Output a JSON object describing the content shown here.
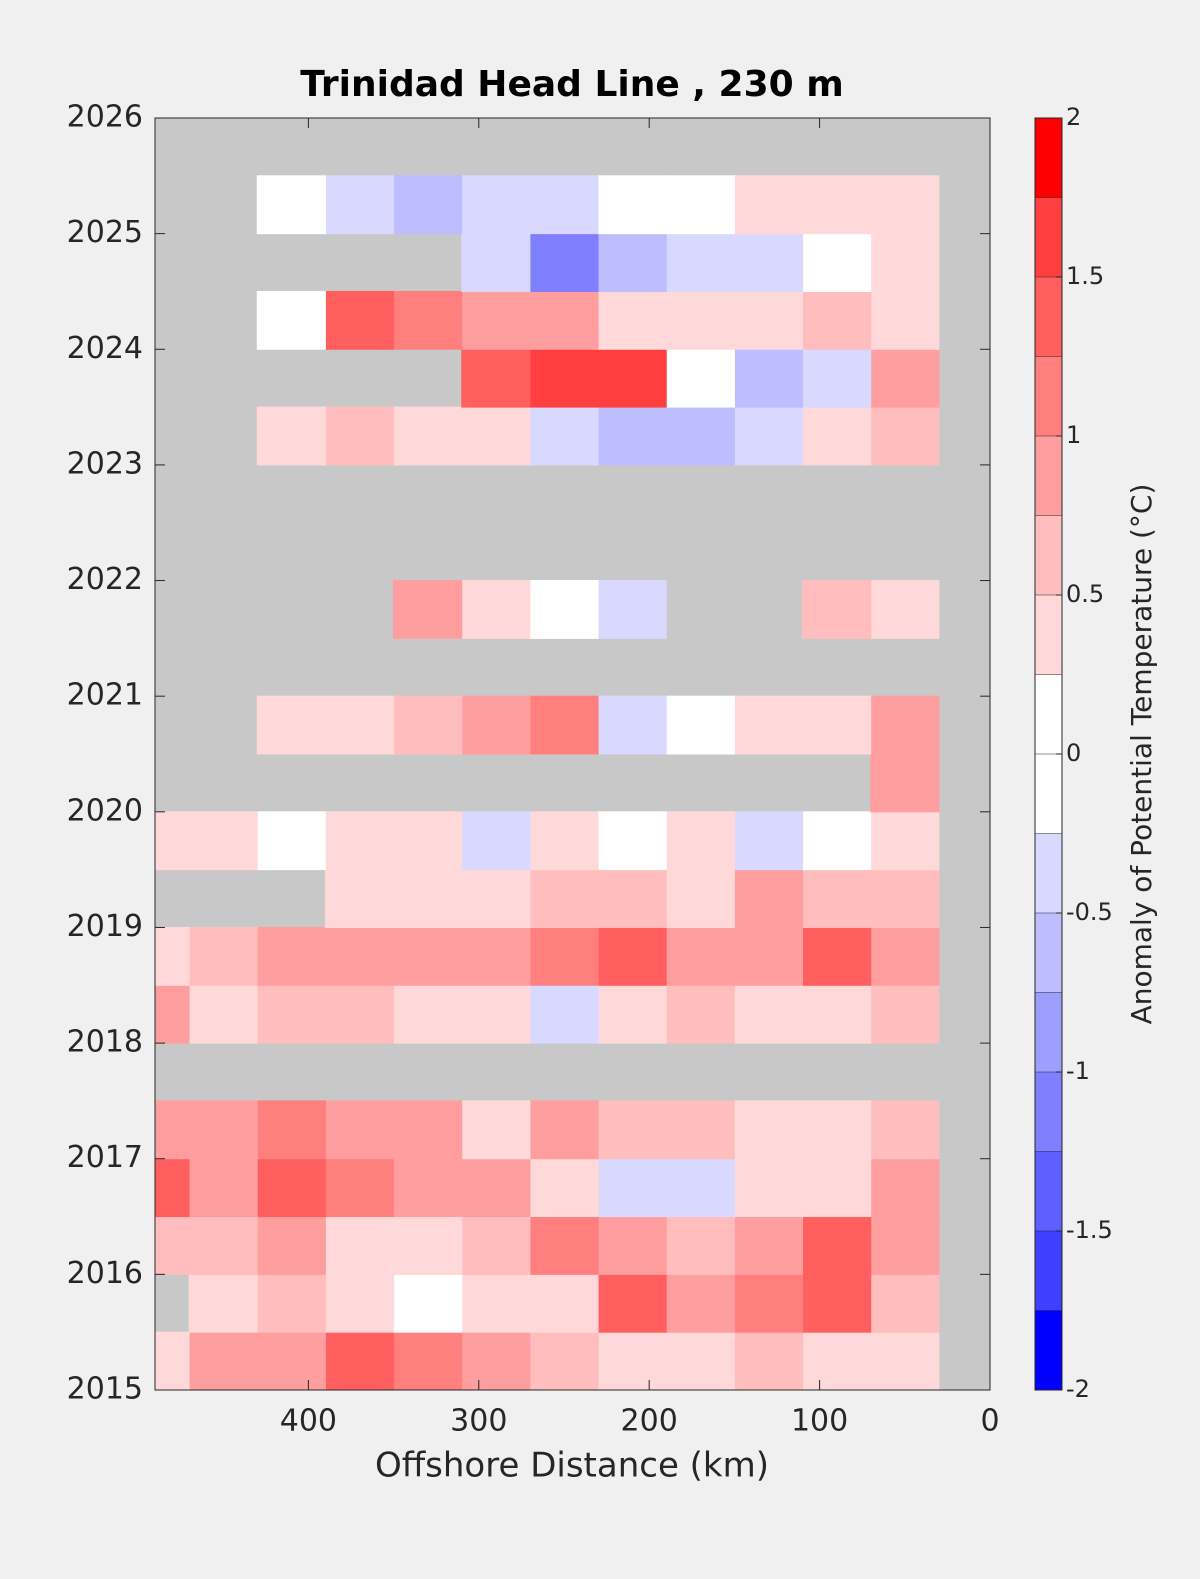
{
  "chart_data": {
    "type": "heatmap",
    "title": "Trinidad Head Line , 230 m",
    "xlabel": "Offshore Distance (km)",
    "colorbar_label": "Anomaly of Potential Temperature (°C)",
    "x": [
      50,
      90,
      130,
      170,
      210,
      250,
      290,
      330,
      370,
      410,
      450,
      490
    ],
    "y": [
      2015.25,
      2015.75,
      2016.25,
      2016.75,
      2017.25,
      2017.75,
      2018.25,
      2018.75,
      2019.25,
      2019.75,
      2020.25,
      2020.75,
      2021.25,
      2021.75,
      2022.25,
      2022.75,
      2023.25,
      2023.75,
      2024.25,
      2024.75,
      2025.25,
      2025.75
    ],
    "z": [
      [
        0.3,
        0.4,
        0.7,
        0.3,
        0.5,
        0.6,
        0.8,
        1.1,
        1.3,
        0.8,
        0.9,
        0.5
      ],
      [
        0.6,
        1.5,
        1.2,
        0.9,
        1.4,
        0.5,
        0.3,
        0.2,
        0.3,
        0.6,
        0.4,
        null
      ],
      [
        1.0,
        1.4,
        1.0,
        0.6,
        0.8,
        1.1,
        0.6,
        0.4,
        0.5,
        0.9,
        0.7,
        0.6
      ],
      [
        0.9,
        0.5,
        0.3,
        -0.4,
        -0.3,
        0.3,
        0.8,
        1.0,
        1.2,
        1.3,
        1.0,
        1.3
      ],
      [
        0.6,
        0.3,
        0.4,
        0.7,
        0.6,
        0.8,
        0.5,
        0.8,
        1.0,
        1.1,
        0.9,
        1.0
      ],
      [
        null,
        null,
        null,
        null,
        null,
        null,
        null,
        null,
        null,
        null,
        null,
        null
      ],
      [
        0.6,
        0.3,
        0.5,
        0.6,
        0.3,
        -0.3,
        0.3,
        0.5,
        0.6,
        0.6,
        0.5,
        0.8
      ],
      [
        0.8,
        1.3,
        0.8,
        0.9,
        1.5,
        1.2,
        0.9,
        0.8,
        1.0,
        0.8,
        0.6,
        0.3
      ],
      [
        0.6,
        0.7,
        0.8,
        0.5,
        0.7,
        0.6,
        0.5,
        0.4,
        0.5,
        null,
        null,
        null
      ],
      [
        0.3,
        0,
        -0.3,
        0.5,
        0.2,
        0.3,
        -0.3,
        0.5,
        0.3,
        0,
        0.4,
        0.5
      ],
      [
        0.8,
        null,
        null,
        null,
        null,
        null,
        null,
        null,
        null,
        null,
        null,
        null
      ],
      [
        0.8,
        0.3,
        0.3,
        0,
        -0.4,
        1.2,
        0.8,
        0.7,
        0.5,
        0.4,
        null,
        null
      ],
      [
        null,
        null,
        null,
        null,
        null,
        null,
        null,
        null,
        null,
        null,
        null,
        null
      ],
      [
        0.5,
        0.7,
        null,
        null,
        -0.3,
        0,
        0.3,
        0.8,
        null,
        null,
        null,
        null
      ],
      [
        null,
        null,
        null,
        null,
        null,
        null,
        null,
        null,
        null,
        null,
        null,
        null
      ],
      [
        null,
        null,
        null,
        null,
        null,
        null,
        null,
        null,
        null,
        null,
        null,
        null
      ],
      [
        0.6,
        0.3,
        -0.4,
        -0.5,
        -0.6,
        -0.3,
        0.3,
        0.5,
        0.6,
        0.5,
        null,
        null
      ],
      [
        1.0,
        -0.3,
        -0.5,
        0.2,
        1.6,
        1.6,
        1.5,
        null,
        null,
        null,
        null,
        null
      ],
      [
        0.5,
        0.6,
        0.3,
        0.4,
        0.5,
        0.8,
        0.9,
        1.2,
        1.5,
        0.2,
        null,
        null
      ],
      [
        0.3,
        0,
        -0.3,
        -0.4,
        -0.5,
        -1.0,
        -0.3,
        null,
        null,
        null,
        null,
        null
      ],
      [
        0.5,
        0.5,
        0.3,
        0.2,
        0,
        -0.3,
        -0.4,
        -0.5,
        -0.3,
        0.1,
        null,
        null
      ],
      [
        null,
        null,
        null,
        null,
        null,
        null,
        null,
        null,
        null,
        null,
        null,
        null
      ]
    ],
    "xlim": [
      490,
      0
    ],
    "xticks": [
      400,
      300,
      200,
      100,
      0
    ],
    "ylim": [
      2015,
      2026
    ],
    "yticks": [
      2015,
      2016,
      2017,
      2018,
      2019,
      2020,
      2021,
      2022,
      2023,
      2024,
      2025,
      2026
    ],
    "levels": [
      -2,
      -1.75,
      -1.5,
      -1.25,
      -1,
      -0.75,
      -0.5,
      -0.25,
      0,
      0.25,
      0.5,
      0.75,
      1,
      1.25,
      1.5,
      1.75,
      2
    ],
    "colors": [
      "#0000ff",
      "#3f3fff",
      "#5f5fff",
      "#7f7fff",
      "#9e9eff",
      "#bdbdff",
      "#d9d9ff",
      "#ffffff",
      "#ffffff",
      "#ffd9d9",
      "#ffbdbd",
      "#ff9e9e",
      "#ff7f7f",
      "#ff5f5f",
      "#ff3f3f",
      "#ff0000"
    ],
    "cticks": [
      -2,
      -1.5,
      -1,
      -0.5,
      0,
      0.5,
      1,
      1.5,
      2
    ],
    "missing_color": "#c8c8c8"
  }
}
